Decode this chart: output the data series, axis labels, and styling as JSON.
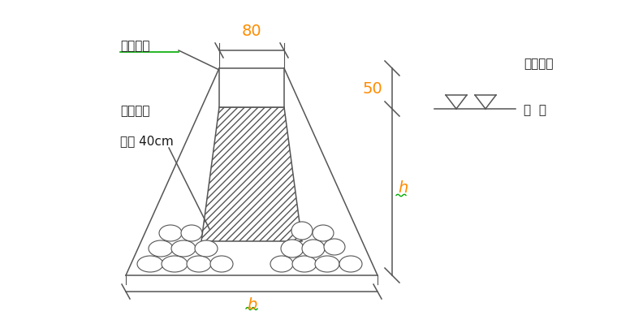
{
  "bg_color": "#ffffff",
  "line_color": "#555555",
  "text_color": "#1a1a1a",
  "orange_color": "#FF8C00",
  "green_color": "#00AA00",
  "blue_color": "#0070C0",
  "fig_width": 7.6,
  "fig_height": 3.94,
  "label_80": "80",
  "label_50": "50",
  "label_h": "h",
  "label_b": "b",
  "label_caobao": "草包叠排",
  "label_fensheng": "防渗心墙",
  "label_kuandu": "宽度 40cm",
  "label_weiding": "围堤顶高",
  "label_shuiwei": "水  位",
  "font_size_label": 10,
  "font_size_dim": 11
}
